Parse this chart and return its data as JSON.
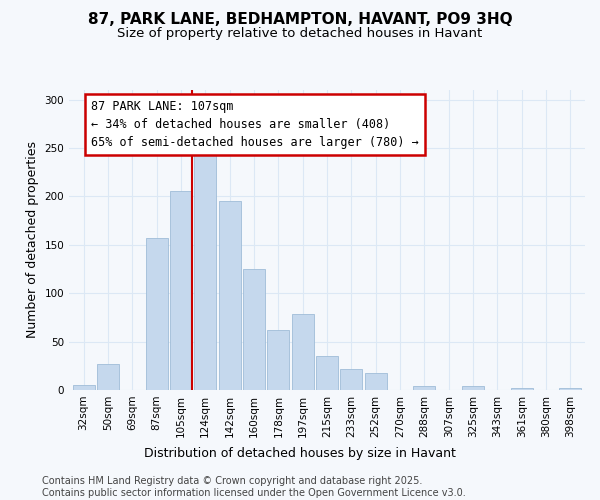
{
  "title_line1": "87, PARK LANE, BEDHAMPTON, HAVANT, PO9 3HQ",
  "title_line2": "Size of property relative to detached houses in Havant",
  "xlabel": "Distribution of detached houses by size in Havant",
  "ylabel": "Number of detached properties",
  "categories": [
    "32sqm",
    "50sqm",
    "69sqm",
    "87sqm",
    "105sqm",
    "124sqm",
    "142sqm",
    "160sqm",
    "178sqm",
    "197sqm",
    "215sqm",
    "233sqm",
    "252sqm",
    "270sqm",
    "288sqm",
    "307sqm",
    "325sqm",
    "343sqm",
    "361sqm",
    "380sqm",
    "398sqm"
  ],
  "values": [
    5,
    27,
    0,
    157,
    206,
    252,
    195,
    125,
    62,
    79,
    35,
    22,
    18,
    0,
    4,
    0,
    4,
    0,
    2,
    0,
    2
  ],
  "bar_color": "#c5d8ed",
  "bar_edge_color": "#a0bdd8",
  "red_line_index": 4,
  "annotation_line1": "87 PARK LANE: 107sqm",
  "annotation_line2": "← 34% of detached houses are smaller (408)",
  "annotation_line3": "65% of semi-detached houses are larger (780) →",
  "annotation_box_facecolor": "white",
  "annotation_box_edgecolor": "#cc0000",
  "ylim_max": 310,
  "yticks": [
    0,
    50,
    100,
    150,
    200,
    250,
    300
  ],
  "background_color": "#f5f8fc",
  "grid_color": "#dce8f5",
  "footer_line1": "Contains HM Land Registry data © Crown copyright and database right 2025.",
  "footer_line2": "Contains public sector information licensed under the Open Government Licence v3.0.",
  "title_fontsize": 11,
  "subtitle_fontsize": 9.5,
  "axis_label_fontsize": 9,
  "tick_fontsize": 7.5,
  "footer_fontsize": 7,
  "ann_fontsize": 8.5
}
